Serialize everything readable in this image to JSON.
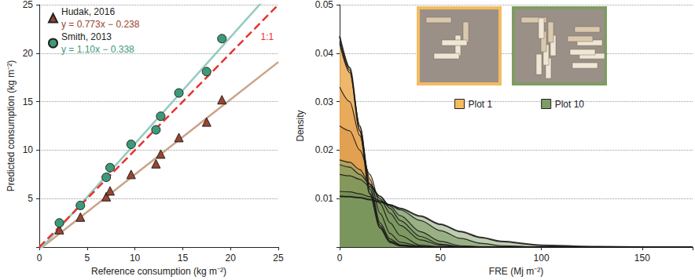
{
  "chart_data": [
    {
      "type": "scatter",
      "x_label": "Reference consumption (kg m⁻²)",
      "y_label": "Predicted consumption (kg m⁻²)",
      "xlim": [
        0,
        25
      ],
      "xticks": [
        0,
        5,
        10,
        15,
        20,
        25
      ],
      "ylim": [
        0,
        25
      ],
      "yticks": [
        5,
        10,
        15,
        20,
        25
      ],
      "grid": true,
      "legend": "upper left",
      "series": [
        {
          "name": "Hudak, 2016",
          "color": "#9a4431",
          "marker": "triangle",
          "x": [
            2.1,
            4.3,
            7.0,
            7.4,
            9.6,
            12.2,
            12.7,
            14.6,
            17.5,
            19.1
          ],
          "values": [
            1.8,
            3.1,
            5.2,
            5.8,
            7.5,
            8.6,
            9.6,
            11.3,
            12.9,
            15.2
          ],
          "fit": {
            "label": "y = 0.773x − 0.238",
            "slope": 0.773,
            "intercept": -0.238,
            "color": "#c9a387",
            "line_style": "solid"
          }
        },
        {
          "name": "Smith, 2013",
          "color": "#3d9a78",
          "marker": "circle",
          "x": [
            2.1,
            4.3,
            7.0,
            7.4,
            9.6,
            12.2,
            12.7,
            14.6,
            17.5,
            19.1
          ],
          "values": [
            2.5,
            4.3,
            7.2,
            8.2,
            10.6,
            12.1,
            13.5,
            15.9,
            18.1,
            21.5
          ],
          "fit": {
            "label": "y = 1.10x − 0.338",
            "slope": 1.1,
            "intercept": -0.338,
            "color": "#96c9bf",
            "line_style": "solid"
          }
        }
      ],
      "reference_line": {
        "label": "1:1",
        "slope": 1,
        "intercept": 0,
        "color": "#e8332f",
        "line_style": "dashed"
      }
    },
    {
      "type": "area",
      "x_label": "FRE (Mj m⁻²)",
      "y_label": "Density",
      "x": [
        0,
        5,
        10,
        15,
        20,
        25,
        30,
        40,
        50,
        60,
        70,
        80,
        100,
        125,
        150,
        175
      ],
      "xlim": [
        0,
        175
      ],
      "xticks": [
        0,
        50,
        100,
        150
      ],
      "ylim": [
        0,
        0.05
      ],
      "yticks": [
        0.01,
        0.02,
        0.03,
        0.04,
        0.05
      ],
      "grid": true,
      "legend": "upper right",
      "series": [
        {
          "name": "Plot 1",
          "color": "#f3bb62",
          "values": [
            0.0435,
            0.037,
            0.024,
            0.011,
            0.004,
            0.001,
            0.0003,
            0,
            0,
            0,
            0,
            0,
            0,
            0,
            0,
            0
          ]
        },
        {
          "color": "#eeb25a",
          "values": [
            0.0425,
            0.0365,
            0.025,
            0.012,
            0.0045,
            0.0013,
            0.0004,
            0,
            0,
            0,
            0,
            0,
            0,
            0,
            0,
            0
          ]
        },
        {
          "color": "#e9a852",
          "values": [
            0.042,
            0.036,
            0.025,
            0.013,
            0.005,
            0.0017,
            0.0005,
            0.0001,
            0,
            0,
            0,
            0,
            0,
            0,
            0,
            0
          ]
        },
        {
          "color": "#e3a04c",
          "values": [
            0.033,
            0.03,
            0.023,
            0.014,
            0.007,
            0.0028,
            0.001,
            0.0002,
            0,
            0,
            0,
            0,
            0,
            0,
            0,
            0
          ]
        },
        {
          "color": "#dc9846",
          "values": [
            0.025,
            0.024,
            0.02,
            0.015,
            0.009,
            0.005,
            0.0024,
            0.0004,
            0.0001,
            0,
            0,
            0,
            0,
            0,
            0,
            0
          ]
        },
        {
          "color": "#86a46a",
          "values": [
            0.018,
            0.0175,
            0.016,
            0.013,
            0.01,
            0.007,
            0.0045,
            0.0015,
            0.0004,
            0.0001,
            0,
            0,
            0,
            0,
            0,
            0
          ]
        },
        {
          "color": "#7c9b60",
          "values": [
            0.017,
            0.0165,
            0.015,
            0.013,
            0.0105,
            0.008,
            0.0055,
            0.0022,
            0.0006,
            0.0001,
            0,
            0,
            0,
            0,
            0,
            0
          ]
        },
        {
          "color": "#729257",
          "values": [
            0.015,
            0.0147,
            0.014,
            0.0125,
            0.0105,
            0.0085,
            0.0065,
            0.0032,
            0.0012,
            0.0003,
            0.0001,
            0,
            0,
            0,
            0,
            0
          ]
        },
        {
          "color": "#68894e",
          "values": [
            0.0115,
            0.0114,
            0.011,
            0.0104,
            0.0096,
            0.0087,
            0.0077,
            0.0055,
            0.0034,
            0.0018,
            0.0008,
            0.0003,
            0,
            0,
            0,
            0
          ]
        },
        {
          "name": "Plot 10",
          "color": "#7f9c63",
          "values": [
            0.0105,
            0.0104,
            0.0102,
            0.0098,
            0.0093,
            0.0087,
            0.008,
            0.0064,
            0.0047,
            0.0032,
            0.002,
            0.0012,
            0.0004,
            0.0001,
            0,
            0
          ]
        }
      ]
    }
  ]
}
